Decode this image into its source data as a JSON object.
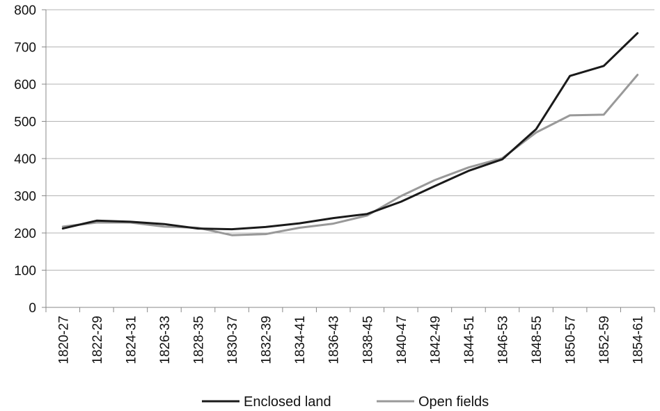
{
  "chart_data": {
    "type": "line",
    "title": "",
    "xlabel": "",
    "ylabel": "",
    "ylim": [
      0,
      800
    ],
    "yticks": [
      0,
      100,
      200,
      300,
      400,
      500,
      600,
      700,
      800
    ],
    "grid": "horizontal",
    "legend_position": "bottom",
    "categories": [
      "1820-27",
      "1822-29",
      "1824-31",
      "1826-33",
      "1828-35",
      "1830-37",
      "1832-39",
      "1834-41",
      "1836-43",
      "1838-45",
      "1840-47",
      "1842-49",
      "1844-51",
      "1846-53",
      "1848-55",
      "1850-57",
      "1852-59",
      "1854-61"
    ],
    "series": [
      {
        "name": "Enclosed land",
        "color": "#1a1a1a",
        "values": [
          212,
          233,
          230,
          224,
          212,
          210,
          216,
          226,
          240,
          251,
          284,
          326,
          367,
          398,
          479,
          622,
          649,
          737
        ]
      },
      {
        "name": "Open fields",
        "color": "#999999",
        "values": [
          217,
          228,
          228,
          217,
          214,
          194,
          197,
          214,
          225,
          247,
          299,
          342,
          376,
          401,
          470,
          516,
          518,
          625
        ]
      }
    ]
  }
}
